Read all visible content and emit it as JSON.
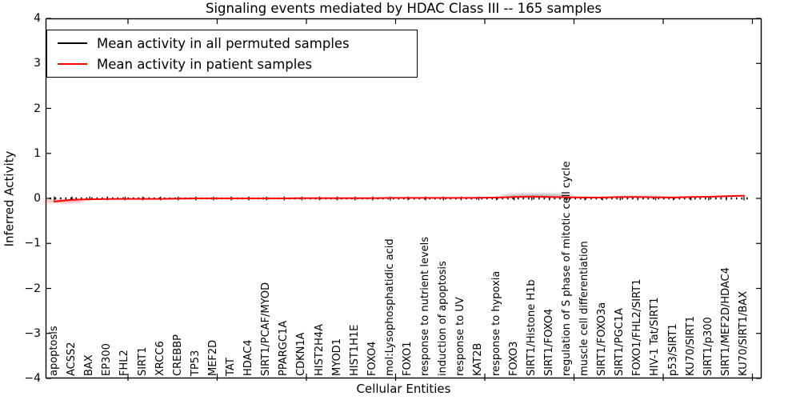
{
  "title": "Signaling events mediated by HDAC Class III -- 165 samples",
  "axes": {
    "ylabel": "Inferred Activity",
    "xlabel": "Cellular Entities",
    "ytick_labels": [
      "4",
      "3",
      "2",
      "1",
      "0",
      "−1",
      "−2",
      "−3",
      "−4"
    ]
  },
  "legend": {
    "entries": [
      {
        "label": "Mean activity in all permuted samples",
        "color": "#000000"
      },
      {
        "label": "Mean activity in patient samples",
        "color": "#ff0000"
      }
    ]
  },
  "chart_data": {
    "type": "line",
    "title": "Signaling events mediated by HDAC Class III -- 165 samples",
    "xlabel": "Cellular Entities",
    "ylabel": "Inferred Activity",
    "ylim": [
      -4,
      4
    ],
    "yticks": [
      4,
      3,
      2,
      1,
      0,
      -1,
      -2,
      -3,
      -4
    ],
    "grid": false,
    "legend_position": "upper left",
    "categories": [
      "apoptosis",
      "ACSS2",
      "BAX",
      "EP300",
      "FHL2",
      "SIRT1",
      "XRCC6",
      "CREBBP",
      "TP53",
      "MEF2D",
      "TAT",
      "HDAC4",
      "SIRT1/PCAF/MYOD",
      "PPARGC1A",
      "CDKN1A",
      "HIST2H4A",
      "MYOD1",
      "HIST1H1E",
      "FOXO4",
      "mol:Lysophosphatidic acid",
      "FOXO1",
      "response to nutrient levels",
      "induction of apoptosis",
      "response to UV",
      "KAT2B",
      "response to hypoxia",
      "FOXO3",
      "SIRT1/Histone H1b",
      "SIRT1/FOXO4",
      "regulation of S phase of mitotic cell cycle",
      "muscle cell differentiation",
      "SIRT1/FOXO3a",
      "SIRT1/PGC1A",
      "FOXO1/FHL2/SIRT1",
      "HIV-1 Tat/SIRT1",
      "p53/SIRT1",
      "KU70/SIRT1",
      "SIRT1/p300",
      "SIRT1/MEF2D/HDAC4",
      "KU70/SIRT1/BAX"
    ],
    "series": [
      {
        "name": "Mean activity in all permuted samples",
        "color": "#000000",
        "style": "dotted",
        "values": [
          0,
          0,
          0,
          0,
          0,
          0,
          0,
          0,
          0,
          0,
          0,
          0,
          0,
          0,
          0,
          0,
          0,
          0,
          0,
          0,
          0,
          0,
          0,
          0,
          0,
          0,
          0,
          0,
          0,
          0,
          0,
          0,
          0,
          0,
          0,
          0,
          0,
          0,
          0,
          0
        ]
      },
      {
        "name": "Mean activity in patient samples",
        "color": "#ff0000",
        "style": "solid",
        "values": [
          -0.07,
          -0.03,
          -0.02,
          -0.015,
          -0.01,
          -0.01,
          -0.01,
          -0.005,
          0,
          0,
          0,
          0,
          0,
          0,
          0.005,
          0.005,
          0.005,
          0.005,
          0.005,
          0.01,
          0.01,
          0.01,
          0.01,
          0.01,
          0.015,
          0.02,
          0.03,
          0.04,
          0.03,
          0.025,
          0.02,
          0.02,
          0.03,
          0.03,
          0.025,
          0.02,
          0.03,
          0.035,
          0.05,
          0.06
        ]
      }
    ]
  }
}
